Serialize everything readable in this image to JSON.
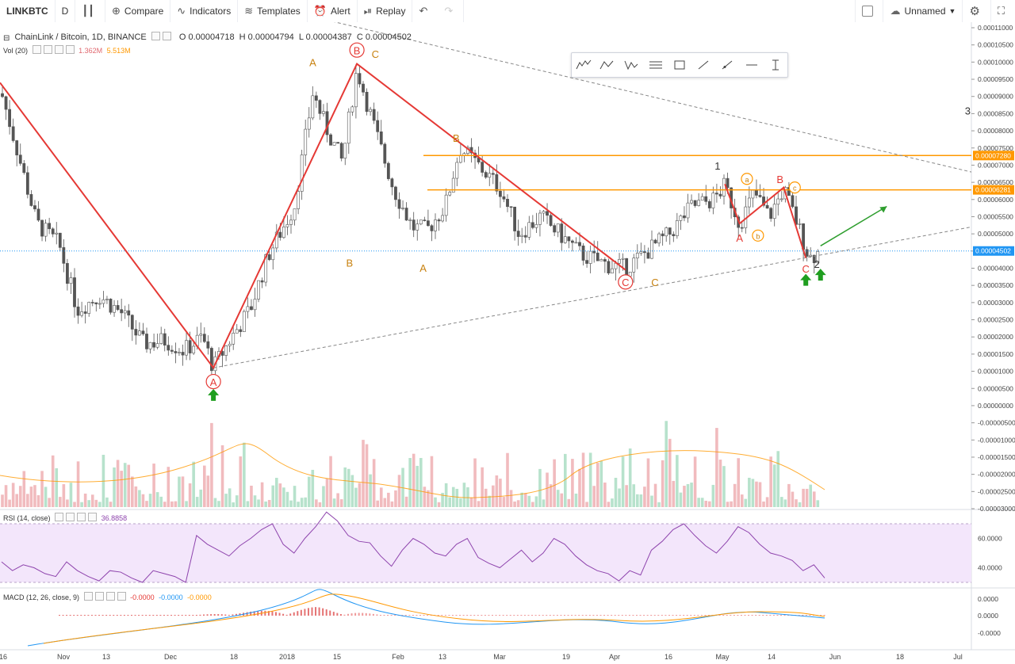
{
  "toolbar": {
    "symbol": "LINKBTC",
    "interval": "D",
    "compare": "Compare",
    "indicators": "Indicators",
    "templates": "Templates",
    "alert": "Alert",
    "replay": "Replay",
    "layout_name": "Unnamed"
  },
  "main_legend": {
    "title": "ChainLink / Bitcoin, 1D, BINANCE",
    "open": "O 0.00004718",
    "high": "H 0.00004794",
    "low": "L 0.00004387",
    "close": "C 0.00004502"
  },
  "vol_legend": {
    "label": "Vol (20)",
    "v1": "1.362M",
    "v2": "5.513M"
  },
  "rsi_legend": {
    "label": "RSI (14, close)",
    "value": "36.8858"
  },
  "macd_legend": {
    "label": "MACD (12, 26, close, 9)",
    "v1": "-0.0000",
    "v2": "-0.0000",
    "v3": "-0.0000"
  },
  "colors": {
    "up": "#5fbf8f",
    "down": "#e0686f",
    "wave": "#e53935",
    "orange": "#ff9800",
    "rsi": "#8e44ad",
    "blue": "#2196f3"
  },
  "chart_data": {
    "type": "candlestick",
    "title": "ChainLink / Bitcoin, 1D, BINANCE",
    "price_axis": {
      "ticks": [
        "0.00011000",
        "0.00010500",
        "0.00010000",
        "0.00009500",
        "0.00009000",
        "0.00008500",
        "0.00008000",
        "0.00007500",
        "0.00007000",
        "0.00006500",
        "0.00006000",
        "0.00005500",
        "0.00005000",
        "0.00004500",
        "0.00004000",
        "0.00003500",
        "0.00003000",
        "0.00002500",
        "0.00002000",
        "0.00001500",
        "0.00001000",
        "0.00000500",
        "0.00000000",
        "-0.00000500",
        "-0.00001000",
        "-0.00001500",
        "-0.00002000",
        "-0.00002500",
        "-0.00003000"
      ],
      "range": [
        -3e-05,
        0.00011
      ],
      "current_price": "0.00004502",
      "level_labels": [
        "0.00007280",
        "0.00006281"
      ],
      "levels": [
        7.28e-05,
        6.281e-05
      ]
    },
    "time_axis": [
      "16",
      "Nov",
      "13",
      "Dec",
      "18",
      "2018",
      "15",
      "Feb",
      "13",
      "Mar",
      "19",
      "Apr",
      "16",
      "May",
      "14",
      "Jun",
      "18",
      "Jul"
    ],
    "close_path": [
      [
        "2017-10-16",
        9.25e-05
      ],
      [
        "2017-10-20",
        7.7e-05
      ],
      [
        "2017-10-26",
        5.3e-05
      ],
      [
        "2017-11-01",
        4.7e-05
      ],
      [
        "2017-11-06",
        2.8e-05
      ],
      [
        "2017-11-12",
        3.2e-05
      ],
      [
        "2017-11-18",
        2.7e-05
      ],
      [
        "2017-11-24",
        1.8e-05
      ],
      [
        "2017-11-30",
        1.9e-05
      ],
      [
        "2017-12-05",
        1.6e-05
      ],
      [
        "2017-12-10",
        2e-05
      ],
      [
        "2017-12-13",
        1.1e-05
      ],
      [
        "2017-12-18",
        2e-05
      ],
      [
        "2017-12-23",
        2.8e-05
      ],
      [
        "2017-12-28",
        4.4e-05
      ],
      [
        "2018-01-04",
        5.8e-05
      ],
      [
        "2018-01-09",
        9.1e-05
      ],
      [
        "2018-01-13",
        8e-05
      ],
      [
        "2018-01-17",
        7.1e-05
      ],
      [
        "2018-01-21",
        9.8e-05
      ],
      [
        "2018-01-26",
        8e-05
      ],
      [
        "2018-01-31",
        6.3e-05
      ],
      [
        "2018-02-05",
        5.2e-05
      ],
      [
        "2018-02-09",
        5.1e-05
      ],
      [
        "2018-02-14",
        5.8e-05
      ],
      [
        "2018-02-18",
        7.5e-05
      ],
      [
        "2018-02-23",
        7e-05
      ],
      [
        "2018-03-01",
        6.3e-05
      ],
      [
        "2018-03-06",
        5e-05
      ],
      [
        "2018-03-12",
        5.5e-05
      ],
      [
        "2018-03-17",
        5e-05
      ],
      [
        "2018-03-23",
        4.4e-05
      ],
      [
        "2018-03-30",
        4.1e-05
      ],
      [
        "2018-04-04",
        4e-05
      ],
      [
        "2018-04-10",
        4.5e-05
      ],
      [
        "2018-04-16",
        5e-05
      ],
      [
        "2018-04-22",
        5.8e-05
      ],
      [
        "2018-04-28",
        6e-05
      ],
      [
        "2018-05-01",
        6.4e-05
      ],
      [
        "2018-05-05",
        5.3e-05
      ],
      [
        "2018-05-09",
        6.2e-05
      ],
      [
        "2018-05-13",
        5.5e-05
      ],
      [
        "2018-05-17",
        6.3e-05
      ],
      [
        "2018-05-21",
        5.2e-05
      ],
      [
        "2018-05-24",
        4.3e-05
      ],
      [
        "2018-05-27",
        4.5e-05
      ]
    ],
    "wave_labels": [
      {
        "text": "A",
        "t": "2017-12-13",
        "p": 7e-06,
        "style": "circle-red"
      },
      {
        "text": "B",
        "t": "2018-01-21",
        "p": 0.0001035,
        "style": "circle-red"
      },
      {
        "text": "C",
        "t": "2018-04-04",
        "p": 3.6e-05,
        "style": "circle-red"
      },
      {
        "text": "A",
        "t": "2018-01-09",
        "p": 0.0001,
        "style": "orange"
      },
      {
        "text": "B",
        "t": "2018-01-21",
        "p": 0.000103,
        "style": "none"
      },
      {
        "text": "C",
        "t": "2018-01-26",
        "p": 0.0001025,
        "style": "orange"
      },
      {
        "text": "B",
        "t": "2018-01-19",
        "p": 4.17e-05,
        "style": "orange"
      },
      {
        "text": "B",
        "t": "2018-02-17",
        "p": 7.8e-05,
        "style": "orange"
      },
      {
        "text": "A",
        "t": "2018-02-08",
        "p": 4.02e-05,
        "style": "orange"
      },
      {
        "text": "C",
        "t": "2018-04-12",
        "p": 3.6e-05,
        "style": "orange"
      },
      {
        "text": "1",
        "t": "2018-04-29",
        "p": 7e-05,
        "style": "black"
      },
      {
        "text": "a",
        "t": "2018-05-07",
        "p": 6.6e-05,
        "style": "circle-orange"
      },
      {
        "text": "b",
        "t": "2018-05-10",
        "p": 4.95e-05,
        "style": "circle-orange"
      },
      {
        "text": "c",
        "t": "2018-05-20",
        "p": 6.35e-05,
        "style": "circle-orange"
      },
      {
        "text": "A",
        "t": "2018-05-05",
        "p": 4.9e-05,
        "style": "red"
      },
      {
        "text": "B",
        "t": "2018-05-16",
        "p": 6.6e-05,
        "style": "red"
      },
      {
        "text": "C",
        "t": "2018-05-23",
        "p": 4e-05,
        "style": "red"
      },
      {
        "text": "2",
        "t": "2018-05-26",
        "p": 4.13e-05,
        "style": "black"
      },
      {
        "text": "3",
        "t": "2018-07-06",
        "p": 8.6e-05,
        "style": "black"
      }
    ],
    "wave_lines": [
      [
        [
          "2017-10-16",
          9.4e-05
        ],
        [
          "2017-12-13",
          1.1e-05
        ],
        [
          "2018-01-21",
          9.95e-05
        ],
        [
          "2018-04-04",
          3.95e-05
        ]
      ],
      [
        [
          "2018-05-01",
          6.45e-05
        ],
        [
          "2018-05-05",
          5.3e-05
        ],
        [
          "2018-05-17",
          6.35e-05
        ],
        [
          "2018-05-23",
          4.3e-05
        ]
      ]
    ],
    "trendlines": [
      [
        [
          "2017-12-13",
          1.1e-05
        ],
        [
          "2018-07-07",
          5.2e-05
        ]
      ],
      [
        [
          "2017-12-13",
          0.00012
        ],
        [
          "2018-07-07",
          6.8e-05
        ]
      ]
    ],
    "forecast_arrow": [
      [
        "2018-05-27",
        4.65e-05
      ],
      [
        "2018-06-14",
        5.8e-05
      ]
    ],
    "up_arrows": [
      [
        "2017-12-13",
        3e-06
      ],
      [
        "2018-05-23",
        3.65e-05
      ],
      [
        "2018-05-27",
        3.8e-05
      ]
    ],
    "volume_levels": [
      "0.5",
      "0.3",
      "0.2",
      "0.4",
      "0.6",
      "0.3",
      "0.8",
      "0.9",
      "0.7",
      "0.5",
      "0.4",
      "0.3",
      "0.8",
      "0.5",
      "0.3",
      "0.2",
      "0.2",
      "0.3"
    ],
    "rsi_axis": [
      "60.0000",
      "40.0000"
    ],
    "macd_axis": [
      "0.0000",
      "0.0000",
      "-0.0000"
    ],
    "rsi_series": [
      44,
      38,
      42,
      40,
      36,
      34,
      44,
      38,
      34,
      31,
      38,
      37,
      33,
      30,
      38,
      36,
      34,
      30,
      62,
      56,
      52,
      48,
      55,
      60,
      66,
      70,
      56,
      50,
      60,
      68,
      78,
      72,
      62,
      58,
      57,
      48,
      41,
      52,
      60,
      56,
      50,
      48,
      56,
      60,
      47,
      43,
      40,
      46,
      52,
      44,
      50,
      60,
      56,
      48,
      42,
      38,
      36,
      31,
      38,
      35,
      52,
      58,
      66,
      70,
      62,
      55,
      50,
      58,
      68,
      64,
      56,
      50,
      48,
      45,
      38,
      42,
      33
    ]
  }
}
